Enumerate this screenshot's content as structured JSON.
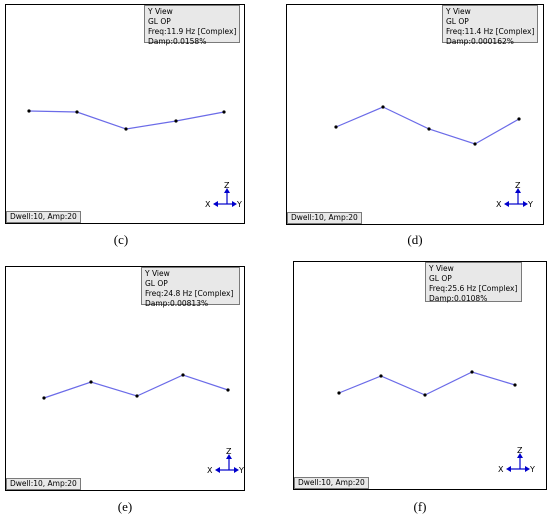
{
  "panels": [
    {
      "id": "c",
      "info": {
        "view": "Y View",
        "mode": "GL OP",
        "freq": "Freq:11.9 Hz [Complex]",
        "damp": "Damp:0.0158%"
      },
      "status": "Dwell:10, Amp:20",
      "caption": "(c)",
      "axes": {
        "z": "Z",
        "x": "X",
        "y": "Y"
      },
      "line_color": "#6b6be8"
    },
    {
      "id": "d",
      "info": {
        "view": "Y View",
        "mode": "GL OP",
        "freq": "Freq:11.4 Hz [Complex]",
        "damp": "Damp:0.000162%"
      },
      "status": "Dwell:10, Amp:20",
      "caption": "(d)",
      "axes": {
        "z": "Z",
        "x": "X",
        "y": "Y"
      },
      "line_color": "#6b6be8"
    },
    {
      "id": "e",
      "info": {
        "view": "Y View",
        "mode": "GL OP",
        "freq": "Freq:24.8 Hz [Complex]",
        "damp": "Damp:0.00813%"
      },
      "status": "Dwell:10, Amp:20",
      "caption": "(e)",
      "axes": {
        "z": "Z",
        "x": "X",
        "y": "Y"
      },
      "line_color": "#6b6be8"
    },
    {
      "id": "f",
      "info": {
        "view": "Y View",
        "mode": "GL OP",
        "freq": "Freq:25.6 Hz [Complex]",
        "damp": "Damp:0.0108%"
      },
      "status": "Dwell:10, Amp:20",
      "caption": "(f)",
      "axes": {
        "z": "Z",
        "x": "X",
        "y": "Y"
      },
      "line_color": "#6b6be8"
    }
  ]
}
